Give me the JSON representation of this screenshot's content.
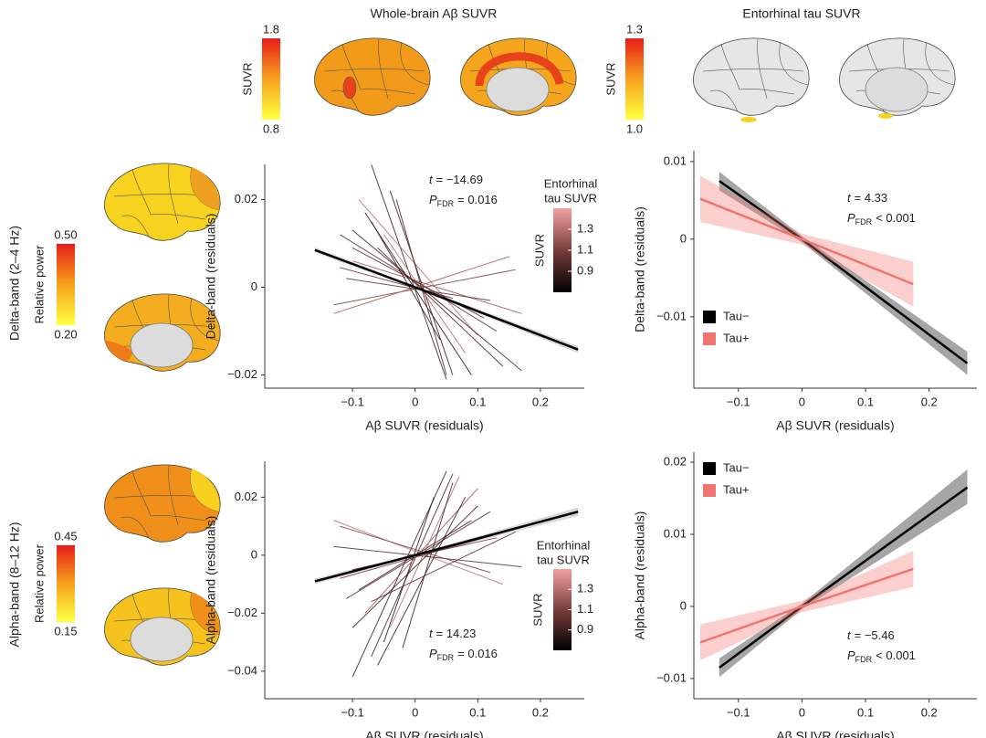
{
  "column_titles": [
    "Whole-brain Aβ SUVR",
    "Entorhinal tau SUVR"
  ],
  "row_labels": [
    "Delta-band (2–4 Hz)",
    "Alpha-band (8–12 Hz)"
  ],
  "colorbars": [
    {
      "label": "SUVR",
      "lim": [
        0.8,
        1.8
      ],
      "ticks": [
        1.8,
        0.8
      ],
      "colors": [
        "#ffff40",
        "#f7a21b",
        "#e8201a"
      ]
    },
    {
      "label": "SUVR",
      "lim": [
        1.0,
        1.3
      ],
      "ticks": [
        1.3,
        {
          "value": 1.0,
          "label": "1.0"
        }
      ],
      "colors": [
        "#ffff40",
        "#f7a21b",
        "#e8201a"
      ]
    },
    {
      "label": "Relative power",
      "lim": [
        0.2,
        0.5
      ],
      "ticks": [
        {
          "value": 0.5,
          "label": "0.50"
        },
        {
          "value": 0.2,
          "label": "0.20"
        }
      ],
      "colors": [
        "#ffff40",
        "#f7a21b",
        "#e8201a"
      ]
    },
    {
      "label": "Relative power",
      "lim": [
        0.15,
        0.45
      ],
      "ticks": [
        0.45,
        0.15
      ],
      "colors": [
        "#ffff40",
        "#f7a21b",
        "#e8201a"
      ]
    }
  ],
  "chart_data": [
    {
      "type": "line",
      "x_label": "Aβ SUVR (residuals)",
      "y_label": "Delta-band (residuals)",
      "xlim": [
        -0.24,
        0.27
      ],
      "ylim": [
        -0.023,
        0.028
      ],
      "xticks": [
        {
          "value": -0.1,
          "label": "−0.1"
        },
        0,
        0.1,
        0.2
      ],
      "yticks": [
        {
          "value": -0.02,
          "label": "−0.02"
        },
        0,
        0.02
      ],
      "annotation": {
        "t": "t",
        "t_value": "= −14.69",
        "p": "P",
        "p_sub": "FDR",
        "p_value": "= 0.016"
      },
      "color_scale": {
        "title": [
          "Entorhinal",
          "tau SUVR"
        ],
        "label": "SUVR",
        "lim": [
          0.7,
          1.5
        ],
        "ticks": [
          1.3,
          1.1,
          0.9
        ],
        "colors": [
          "#000000",
          "#7a3d3d",
          "#f4a0a0"
        ]
      },
      "subject_lines": [
        {
          "x": [
            -0.07,
            0.05
          ],
          "y": [
            0.028,
            -0.021
          ],
          "tau": 0.9
        },
        {
          "x": [
            -0.12,
            0.13
          ],
          "y": [
            0.012,
            -0.01
          ],
          "tau": 1.0
        },
        {
          "x": [
            -0.1,
            0.17
          ],
          "y": [
            0.006,
            -0.006
          ],
          "tau": 1.2
        },
        {
          "x": [
            -0.13,
            0.16
          ],
          "y": [
            -0.004,
            0.004
          ],
          "tau": 1.1
        },
        {
          "x": [
            -0.06,
            0.14
          ],
          "y": [
            0.009,
            -0.018
          ],
          "tau": 0.95
        },
        {
          "x": [
            -0.08,
            0.09
          ],
          "y": [
            0.017,
            -0.02
          ],
          "tau": 0.85
        },
        {
          "x": [
            -0.09,
            0.1
          ],
          "y": [
            0.02,
            -0.011
          ],
          "tau": 1.3
        },
        {
          "x": [
            -0.04,
            0.06
          ],
          "y": [
            0.022,
            -0.02
          ],
          "tau": 0.9
        },
        {
          "x": [
            -0.11,
            0.12
          ],
          "y": [
            0.002,
            -0.003
          ],
          "tau": 1.0
        },
        {
          "x": [
            -0.12,
            0.06
          ],
          "y": [
            0.0045,
            -0.0025
          ],
          "tau": 1.05
        },
        {
          "x": [
            -0.05,
            0.08
          ],
          "y": [
            0.012,
            -0.015
          ],
          "tau": 1.3
        },
        {
          "x": [
            -0.1,
            0.11
          ],
          "y": [
            0.009,
            -0.007
          ],
          "tau": 1.0
        },
        {
          "x": [
            -0.13,
            0.15
          ],
          "y": [
            -0.006,
            0.007
          ],
          "tau": 1.25
        },
        {
          "x": [
            -0.07,
            0.04
          ],
          "y": [
            0.015,
            -0.012
          ],
          "tau": 0.9
        },
        {
          "x": [
            -0.03,
            0.05
          ],
          "y": [
            0.02,
            -0.02
          ],
          "tau": 0.95
        },
        {
          "x": [
            -0.1,
            0.17
          ],
          "y": [
            0.013,
            -0.019
          ],
          "tau": 0.95
        }
      ],
      "series": [
        {
          "color": "#000000",
          "x": [
            -0.16,
            0,
            0.26
          ],
          "values": [
            0.0085,
            0,
            -0.0142
          ],
          "ci_lower": [
            0.0079,
            -0.0003,
            -0.015
          ],
          "ci_upper": [
            0.0091,
            0.0003,
            -0.0134
          ]
        }
      ]
    },
    {
      "type": "line",
      "x_label": "Aβ SUVR (residuals)",
      "y_label": "Delta-band (residuals)",
      "xlim": [
        -0.17,
        0.275
      ],
      "ylim": [
        -0.0192,
        0.0114
      ],
      "xticks": [
        {
          "value": -0.1,
          "label": "−0.1"
        },
        0,
        0.1,
        0.2
      ],
      "yticks": [
        {
          "value": -0.01,
          "label": "−0.01"
        },
        0,
        0.01
      ],
      "annotation": {
        "t": "t",
        "t_value": "= 4.33",
        "p": "P",
        "p_sub": "FDR",
        "p_value": "< 0.001"
      },
      "legend": "bottom-left",
      "series": [
        {
          "name": "Tau−",
          "color": "#000000",
          "x": [
            -0.13,
            0,
            0.26
          ],
          "values": [
            0.0075,
            0,
            -0.016
          ],
          "ci_lower": [
            0.0063,
            -0.0004,
            -0.0175
          ],
          "ci_upper": [
            0.0087,
            0.0004,
            -0.0145
          ]
        },
        {
          "name": "Tau+",
          "color": "#f07570",
          "x": [
            -0.16,
            0,
            0.175
          ],
          "values": [
            0.0052,
            0,
            -0.0058
          ],
          "ci_lower": [
            0.0022,
            -0.0007,
            -0.0087
          ],
          "ci_upper": [
            0.0082,
            0.0007,
            -0.0029
          ]
        }
      ]
    },
    {
      "type": "line",
      "x_label": "Aβ SUVR (residuals)",
      "y_label": "Alpha-band (residuals)",
      "xlim": [
        -0.24,
        0.27
      ],
      "ylim": [
        -0.0495,
        0.0324
      ],
      "xticks": [
        {
          "value": -0.1,
          "label": "−0.1"
        },
        0,
        0.1,
        0.2
      ],
      "yticks": [
        {
          "value": -0.04,
          "label": "−0.04"
        },
        {
          "value": -0.02,
          "label": "−0.02"
        },
        0,
        0.02
      ],
      "annotation": {
        "t": "t",
        "t_value": "= 14.23",
        "p": "P",
        "p_sub": "FDR",
        "p_value": "= 0.016"
      },
      "color_scale": {
        "title": [
          "Entorhinal",
          "tau SUVR"
        ],
        "label": "SUVR",
        "lim": [
          0.7,
          1.5
        ],
        "ticks": [
          1.3,
          1.1,
          0.9
        ],
        "colors": [
          "#000000",
          "#7a3d3d",
          "#f4a0a0"
        ]
      },
      "subject_lines": [
        {
          "x": [
            -0.1,
            0.05
          ],
          "y": [
            -0.042,
            0.029
          ],
          "tau": 0.9
        },
        {
          "x": [
            -0.13,
            0.14
          ],
          "y": [
            0.012,
            -0.01
          ],
          "tau": 1.3
        },
        {
          "x": [
            -0.07,
            0.06
          ],
          "y": [
            -0.035,
            0.028
          ],
          "tau": 0.95
        },
        {
          "x": [
            -0.11,
            0.12
          ],
          "y": [
            -0.015,
            0.015
          ],
          "tau": 1.0
        },
        {
          "x": [
            -0.12,
            0.16
          ],
          "y": [
            -0.008,
            0.009
          ],
          "tau": 1.1
        },
        {
          "x": [
            -0.05,
            0.03
          ],
          "y": [
            -0.03,
            0.02
          ],
          "tau": 0.85
        },
        {
          "x": [
            -0.08,
            0.1
          ],
          "y": [
            -0.02,
            0.023
          ],
          "tau": 1.2
        },
        {
          "x": [
            -0.13,
            0.17
          ],
          "y": [
            0.003,
            -0.004
          ],
          "tau": 1.0
        },
        {
          "x": [
            -0.06,
            0.08
          ],
          "y": [
            -0.038,
            0.02
          ],
          "tau": 0.9
        },
        {
          "x": [
            -0.1,
            0.13
          ],
          "y": [
            -0.005,
            0.006
          ],
          "tau": 1.05
        },
        {
          "x": [
            -0.04,
            0.07
          ],
          "y": [
            -0.025,
            0.027
          ],
          "tau": 1.3
        },
        {
          "x": [
            -0.09,
            0.09
          ],
          "y": [
            -0.012,
            0.012
          ],
          "tau": 0.95
        },
        {
          "x": [
            -0.12,
            0.12
          ],
          "y": [
            0.01,
            -0.006
          ],
          "tau": 1.1
        },
        {
          "x": [
            -0.02,
            0.06
          ],
          "y": [
            -0.032,
            0.025
          ],
          "tau": 0.9
        },
        {
          "x": [
            -0.1,
            0.1
          ],
          "y": [
            -0.025,
            0.017
          ],
          "tau": 0.9
        },
        {
          "x": [
            -0.07,
            0.16
          ],
          "y": [
            -0.016,
            0.008
          ],
          "tau": 1.0
        }
      ],
      "series": [
        {
          "color": "#000000",
          "x": [
            -0.16,
            0,
            0.26
          ],
          "values": [
            -0.009,
            0,
            0.015
          ],
          "ci_lower": [
            -0.01,
            -0.0004,
            0.0135
          ],
          "ci_upper": [
            -0.008,
            0.0004,
            0.0165
          ]
        }
      ]
    },
    {
      "type": "line",
      "x_label": "Aβ SUVR (residuals)",
      "y_label": "Alpha-band (residuals)",
      "xlim": [
        -0.17,
        0.275
      ],
      "ylim": [
        -0.0128,
        0.0214
      ],
      "xticks": [
        {
          "value": -0.1,
          "label": "−0.1"
        },
        0,
        0.1,
        0.2
      ],
      "yticks": [
        {
          "value": -0.01,
          "label": "−0.01"
        },
        0,
        0.01,
        0.02
      ],
      "annotation": {
        "t": "t",
        "t_value": "= −5.46",
        "p": "P",
        "p_sub": "FDR",
        "p_value": "< 0.001"
      },
      "legend": "top-left",
      "series": [
        {
          "name": "Tau−",
          "color": "#000000",
          "x": [
            -0.13,
            0,
            0.26
          ],
          "values": [
            -0.0085,
            0,
            0.0165
          ],
          "ci_lower": [
            -0.0098,
            -0.0004,
            0.0142
          ],
          "ci_upper": [
            -0.0072,
            0.0004,
            0.019
          ]
        },
        {
          "name": "Tau+",
          "color": "#f07570",
          "x": [
            -0.16,
            0,
            0.175
          ],
          "values": [
            -0.005,
            0,
            0.0052
          ],
          "ci_lower": [
            -0.0075,
            -0.0008,
            0.0027
          ],
          "ci_upper": [
            -0.0025,
            0.0008,
            0.0077
          ]
        }
      ]
    }
  ]
}
